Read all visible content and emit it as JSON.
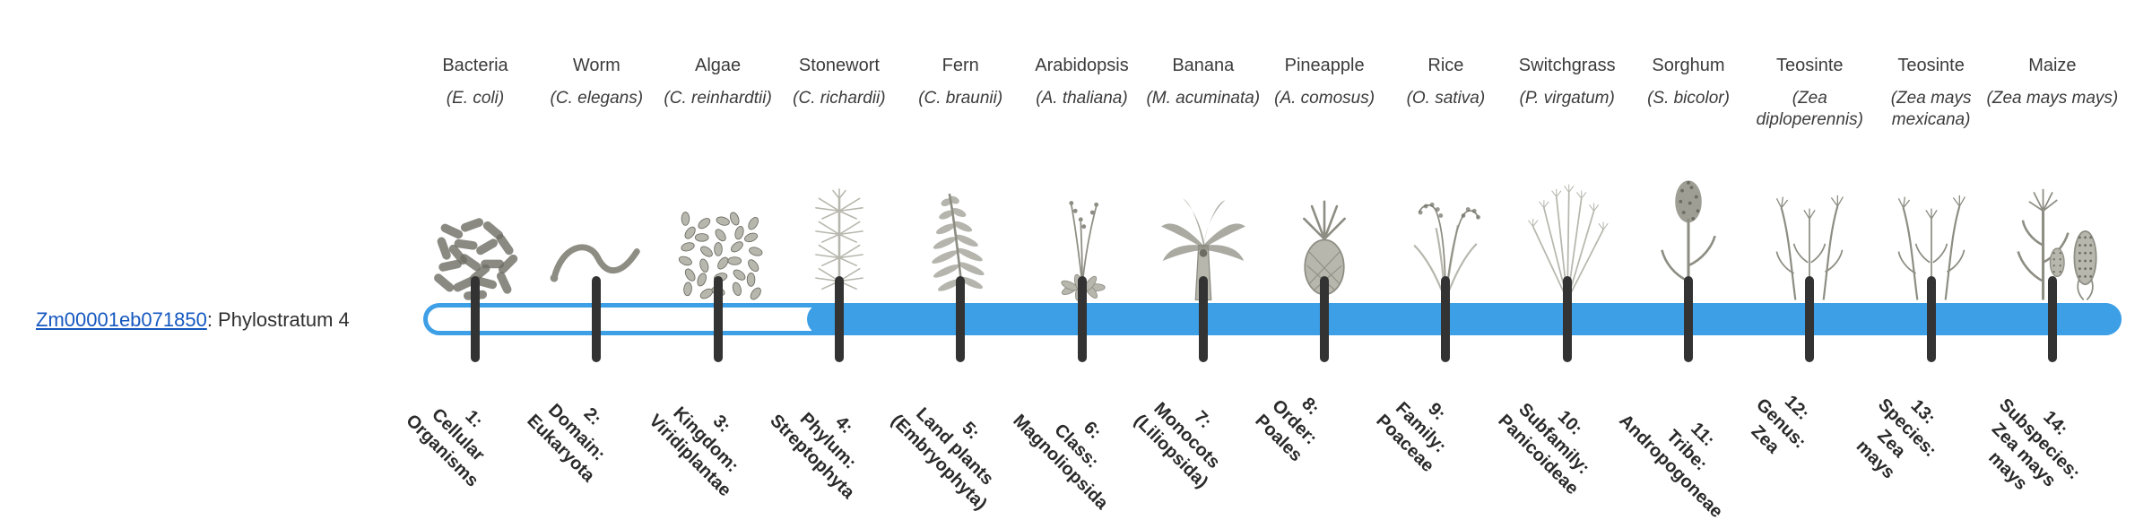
{
  "colors": {
    "accent": "#3d9fe6",
    "tick": "#333333",
    "link": "#1558c0",
    "illustration": "#8d8d83"
  },
  "gene": {
    "id": "Zm00001eb071850",
    "suffix": ": Phylostratum 4"
  },
  "organisms": [
    {
      "common_name": "Bacteria",
      "sci_name": "(E. coli)",
      "icon": "bacteria-icon",
      "stage_label": "1:\nCellular\nOrganisms"
    },
    {
      "common_name": "Worm",
      "sci_name": "(C. elegans)",
      "icon": "worm-icon",
      "stage_label": "2:\nDomain:\nEukaryota"
    },
    {
      "common_name": "Algae",
      "sci_name": "(C. reinhardtii)",
      "icon": "algae-icon",
      "stage_label": "3:\nKingdom:\nViridiplantae"
    },
    {
      "common_name": "Stonewort",
      "sci_name": "(C. richardii)",
      "icon": "stonewort-icon",
      "stage_label": "4:\nPhylum:\nStreptophyta"
    },
    {
      "common_name": "Fern",
      "sci_name": "(C. braunii)",
      "icon": "fern-icon",
      "stage_label": "5:\nLand plants\n(Embryophyta)"
    },
    {
      "common_name": "Arabidopsis",
      "sci_name": "(A. thaliana)",
      "icon": "arabidopsis-icon",
      "stage_label": "6:\nClass:\nMagnoliopsida"
    },
    {
      "common_name": "Banana",
      "sci_name": "(M. acuminata)",
      "icon": "banana-icon",
      "stage_label": "7:\nMonocots\n(Liliopsida)"
    },
    {
      "common_name": "Pineapple",
      "sci_name": "(A. comosus)",
      "icon": "pineapple-icon",
      "stage_label": "8:\nOrder:\nPoales"
    },
    {
      "common_name": "Rice",
      "sci_name": "(O. sativa)",
      "icon": "rice-icon",
      "stage_label": "9:\nFamily:\nPoaceae"
    },
    {
      "common_name": "Switchgrass",
      "sci_name": "(P. virgatum)",
      "icon": "switchgrass-icon",
      "stage_label": "10:\nSubfamily:\nPanicoideae"
    },
    {
      "common_name": "Sorghum",
      "sci_name": "(S. bicolor)",
      "icon": "sorghum-icon",
      "stage_label": "11:\nTribe:\nAndropogoneae"
    },
    {
      "common_name": "Teosinte",
      "sci_name": "(Zea diploperennis)",
      "icon": "teosinte-icon",
      "stage_label": "12:\nGenus:\nZea"
    },
    {
      "common_name": "Teosinte",
      "sci_name": "(Zea mays mexicana)",
      "icon": "teosinte-icon",
      "stage_label": "13:\nSpecies:\nZea\nmays"
    },
    {
      "common_name": "Maize",
      "sci_name": "(Zea mays mays)",
      "icon": "maize-icon",
      "stage_label": "14:\nSubspecies:\nZea mays\nmays"
    }
  ],
  "chart_data": {
    "type": "timeline",
    "title": "Phylostratum assignment",
    "gene": "Zm00001eb071850",
    "phylostratum": 4,
    "filled_range": [
      4,
      14
    ],
    "categories": [
      "1: Cellular Organisms",
      "2: Domain: Eukaryota",
      "3: Kingdom: Viridiplantae",
      "4: Phylum: Streptophyta",
      "5: Land plants (Embryophyta)",
      "6: Class: Magnoliopsida",
      "7: Monocots (Liliopsida)",
      "8: Order: Poales",
      "9: Family: Poaceae",
      "10: Subfamily: Panicoideae",
      "11: Tribe: Andropogoneae",
      "12: Genus: Zea",
      "13: Species: Zea mays",
      "14: Subspecies: Zea mays mays"
    ],
    "organisms": [
      "Bacteria (E. coli)",
      "Worm (C. elegans)",
      "Algae (C. reinhardtii)",
      "Stonewort (C. richardii)",
      "Fern (C. braunii)",
      "Arabidopsis (A. thaliana)",
      "Banana (M. acuminata)",
      "Pineapple (A. comosus)",
      "Rice (O. sativa)",
      "Switchgrass (P. virgatum)",
      "Sorghum (S. bicolor)",
      "Teosinte (Zea diploperennis)",
      "Teosinte (Zea mays mexicana)",
      "Maize (Zea mays mays)"
    ]
  }
}
